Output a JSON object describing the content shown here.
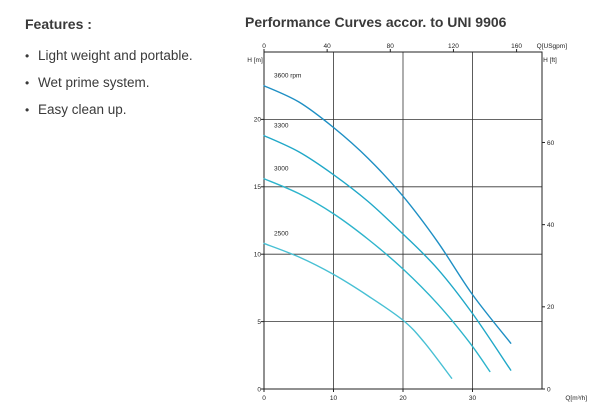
{
  "features": {
    "heading": "Features :",
    "items": [
      "Light weight and portable.",
      "Wet prime system.",
      "Easy clean up."
    ]
  },
  "chart_data": {
    "type": "line",
    "title": "Performance Curves accor. to UNI 9906",
    "xlabel": "Q[m³/h]",
    "ylabel": "H [m]",
    "x2label": "Q[USgpm]",
    "y2label": "H [ft]",
    "xlim": [
      0,
      40
    ],
    "ylim": [
      0,
      25
    ],
    "x2lim": [
      0,
      176.1
    ],
    "y2lim": [
      0,
      82.02
    ],
    "xticks": [
      0,
      10,
      20,
      30
    ],
    "yticks": [
      0,
      5,
      10,
      15,
      20
    ],
    "x2ticks": [
      0,
      40,
      80,
      120,
      160
    ],
    "y2ticks": [
      0,
      20,
      40,
      60
    ],
    "grid": true,
    "colors": [
      "#1e8fc4",
      "#20a8c8",
      "#2db4cc",
      "#48c0d4"
    ],
    "series": [
      {
        "name": "3600 rpm",
        "x": [
          0,
          5,
          10,
          15,
          20,
          25,
          30,
          35.5
        ],
        "y": [
          22.5,
          21.3,
          19.4,
          17.1,
          14.3,
          10.9,
          7.0,
          3.4
        ]
      },
      {
        "name": "3300",
        "x": [
          0,
          5,
          10,
          15,
          20,
          25,
          30,
          35.5
        ],
        "y": [
          18.8,
          17.6,
          15.9,
          13.9,
          11.5,
          8.9,
          5.6,
          1.4
        ]
      },
      {
        "name": "3000",
        "x": [
          0,
          5,
          10,
          15,
          20,
          25,
          29.5,
          32.5
        ],
        "y": [
          15.6,
          14.5,
          13.0,
          11.1,
          8.9,
          6.3,
          3.5,
          1.3
        ]
      },
      {
        "name": "2500",
        "x": [
          0,
          5,
          10,
          15,
          20,
          23,
          27
        ],
        "y": [
          10.8,
          9.8,
          8.5,
          6.9,
          5.1,
          3.5,
          0.8
        ]
      }
    ]
  }
}
